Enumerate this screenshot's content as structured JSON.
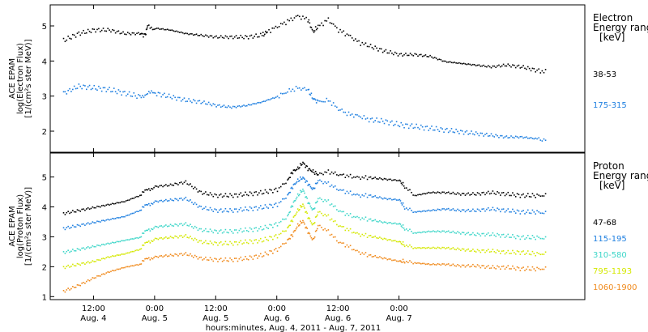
{
  "chart_data": [
    {
      "type": "scatter",
      "panel": "electron",
      "ylabel_lines": [
        "ACE EPAM",
        "log(Electron Flux)",
        "[1/(cm²s ster MeV)]"
      ],
      "ylim": [
        1.4,
        5.6
      ],
      "yticks": [
        2,
        3,
        4,
        5
      ],
      "legend_title_lines": [
        "Electron",
        "Energy range",
        "[keV]"
      ],
      "legend_placement": "right",
      "series": [
        {
          "name": "38-53",
          "color": "#000000",
          "x": [
            0,
            6,
            12,
            18,
            24,
            30,
            32,
            33,
            36,
            42,
            48,
            54,
            60,
            66,
            72,
            78,
            80,
            84,
            88,
            92,
            96,
            98,
            100,
            104,
            108,
            112,
            116,
            120,
            126,
            132,
            138,
            144,
            150,
            156,
            162,
            168,
            174,
            180,
            186,
            190
          ],
          "y": [
            4.6,
            4.8,
            4.9,
            4.9,
            4.8,
            4.8,
            4.75,
            5.0,
            4.95,
            4.9,
            4.8,
            4.75,
            4.7,
            4.7,
            4.7,
            4.75,
            4.85,
            5.0,
            5.15,
            5.3,
            5.2,
            4.85,
            5.0,
            5.2,
            4.9,
            4.75,
            4.55,
            4.45,
            4.3,
            4.2,
            4.2,
            4.15,
            4.0,
            3.95,
            3.9,
            3.85,
            3.9,
            3.85,
            3.75,
            3.7
          ]
        },
        {
          "name": "175-315",
          "color": "#1e7fe0",
          "x": [
            0,
            6,
            12,
            18,
            24,
            30,
            33,
            36,
            42,
            48,
            54,
            60,
            66,
            72,
            78,
            84,
            88,
            92,
            96,
            98,
            100,
            104,
            108,
            112,
            116,
            120,
            126,
            132,
            138,
            144,
            150,
            156,
            162,
            168,
            174,
            180,
            186,
            190
          ],
          "y": [
            3.1,
            3.3,
            3.25,
            3.2,
            3.1,
            3.0,
            3.1,
            3.1,
            3.0,
            2.9,
            2.85,
            2.75,
            2.7,
            2.75,
            2.85,
            3.0,
            3.15,
            3.25,
            3.2,
            2.95,
            2.85,
            2.9,
            2.65,
            2.5,
            2.45,
            2.35,
            2.3,
            2.2,
            2.15,
            2.1,
            2.05,
            2.0,
            1.95,
            1.9,
            1.85,
            1.85,
            1.8,
            1.75
          ]
        }
      ]
    },
    {
      "type": "scatter",
      "panel": "proton",
      "ylabel_lines": [
        "ACE EPAM",
        "log(Proton Flux)",
        "[1/(cm²s ster MeV)]"
      ],
      "ylim": [
        0.9,
        5.8
      ],
      "yticks": [
        1,
        2,
        3,
        4,
        5
      ],
      "legend_title_lines": [
        "Proton",
        "Energy range",
        "[keV]"
      ],
      "legend_placement": "right",
      "series": [
        {
          "name": "47-68",
          "color": "#000000",
          "x": [
            0,
            6,
            12,
            18,
            24,
            30,
            33,
            36,
            42,
            48,
            54,
            60,
            66,
            72,
            78,
            84,
            88,
            90,
            92,
            94,
            96,
            98,
            100,
            104,
            108,
            112,
            116,
            120,
            126,
            132,
            134,
            138,
            144,
            150,
            156,
            162,
            168,
            174,
            180,
            186,
            190
          ],
          "y": [
            3.8,
            3.9,
            4.0,
            4.1,
            4.2,
            4.4,
            4.6,
            4.7,
            4.75,
            4.85,
            4.5,
            4.4,
            4.4,
            4.45,
            4.5,
            4.6,
            4.9,
            5.2,
            5.3,
            5.5,
            5.3,
            5.2,
            5.1,
            5.2,
            5.1,
            5.05,
            5.0,
            5.0,
            4.95,
            4.9,
            4.7,
            4.4,
            4.5,
            4.5,
            4.45,
            4.45,
            4.5,
            4.45,
            4.4,
            4.4,
            4.4
          ]
        },
        {
          "name": "115-195",
          "color": "#1e7fe0",
          "x": [
            0,
            6,
            12,
            18,
            24,
            30,
            33,
            36,
            42,
            48,
            54,
            60,
            66,
            72,
            78,
            84,
            88,
            90,
            92,
            94,
            96,
            98,
            100,
            104,
            108,
            112,
            116,
            120,
            126,
            132,
            134,
            138,
            144,
            150,
            156,
            162,
            168,
            174,
            180,
            186,
            190
          ],
          "y": [
            3.3,
            3.4,
            3.5,
            3.6,
            3.7,
            3.9,
            4.1,
            4.2,
            4.25,
            4.3,
            4.0,
            3.9,
            3.9,
            3.95,
            4.0,
            4.1,
            4.4,
            4.7,
            4.9,
            5.0,
            4.8,
            4.6,
            4.9,
            4.8,
            4.6,
            4.5,
            4.4,
            4.4,
            4.3,
            4.25,
            4.0,
            3.85,
            3.9,
            3.95,
            3.9,
            3.9,
            3.95,
            3.9,
            3.85,
            3.85,
            3.8
          ]
        },
        {
          "name": "310-580",
          "color": "#3dd6c8",
          "x": [
            0,
            6,
            12,
            18,
            24,
            30,
            33,
            36,
            42,
            48,
            54,
            60,
            66,
            72,
            78,
            84,
            88,
            90,
            92,
            94,
            96,
            98,
            100,
            104,
            108,
            112,
            116,
            120,
            126,
            132,
            134,
            138,
            144,
            150,
            156,
            162,
            168,
            174,
            180,
            186,
            190
          ],
          "y": [
            2.5,
            2.6,
            2.7,
            2.8,
            2.9,
            3.0,
            3.25,
            3.35,
            3.4,
            3.45,
            3.25,
            3.2,
            3.2,
            3.25,
            3.3,
            3.45,
            3.7,
            4.1,
            4.4,
            4.6,
            4.2,
            3.9,
            4.3,
            4.2,
            3.9,
            3.75,
            3.65,
            3.6,
            3.5,
            3.45,
            3.3,
            3.15,
            3.2,
            3.2,
            3.15,
            3.1,
            3.1,
            3.05,
            3.0,
            3.0,
            2.95
          ]
        },
        {
          "name": "795-1193",
          "color": "#d4e800",
          "x": [
            0,
            6,
            12,
            18,
            24,
            30,
            33,
            36,
            42,
            48,
            54,
            60,
            66,
            72,
            78,
            84,
            88,
            90,
            92,
            94,
            96,
            98,
            100,
            104,
            108,
            112,
            116,
            120,
            126,
            132,
            134,
            138,
            144,
            150,
            156,
            162,
            168,
            174,
            180,
            186,
            190
          ],
          "y": [
            2.0,
            2.1,
            2.2,
            2.35,
            2.45,
            2.6,
            2.85,
            2.95,
            3.0,
            3.05,
            2.85,
            2.8,
            2.8,
            2.85,
            2.9,
            3.05,
            3.3,
            3.6,
            3.9,
            4.1,
            3.7,
            3.4,
            3.85,
            3.7,
            3.4,
            3.25,
            3.1,
            3.05,
            2.95,
            2.85,
            2.75,
            2.65,
            2.65,
            2.65,
            2.6,
            2.55,
            2.55,
            2.5,
            2.5,
            2.45,
            2.45
          ]
        },
        {
          "name": "1060-1900",
          "color": "#f08a1c",
          "x": [
            0,
            6,
            12,
            18,
            24,
            30,
            33,
            36,
            42,
            48,
            54,
            60,
            66,
            72,
            78,
            84,
            88,
            90,
            92,
            94,
            96,
            98,
            100,
            104,
            108,
            112,
            116,
            120,
            126,
            132,
            134,
            138,
            144,
            150,
            156,
            162,
            168,
            174,
            180,
            186,
            190
          ],
          "y": [
            1.2,
            1.4,
            1.65,
            1.85,
            2.0,
            2.1,
            2.3,
            2.35,
            2.4,
            2.45,
            2.3,
            2.25,
            2.25,
            2.3,
            2.4,
            2.6,
            2.9,
            3.1,
            3.4,
            3.55,
            3.2,
            2.9,
            3.4,
            3.2,
            2.85,
            2.7,
            2.5,
            2.4,
            2.3,
            2.2,
            2.2,
            2.15,
            2.1,
            2.1,
            2.05,
            2.05,
            2.0,
            2.0,
            1.95,
            1.95,
            1.95
          ]
        }
      ]
    }
  ],
  "x_axis": {
    "xlim": [
      -5,
      205
    ],
    "ticks": [
      {
        "x": 12,
        "time": "12:00",
        "day": "Aug. 4"
      },
      {
        "x": 36,
        "time": "0:00",
        "day": "Aug. 5"
      },
      {
        "x": 60,
        "time": "12:00",
        "day": "Aug. 5"
      },
      {
        "x": 84,
        "time": "0:00",
        "day": "Aug. 6"
      },
      {
        "x": 108,
        "time": "12:00",
        "day": "Aug. 6"
      },
      {
        "x": 132,
        "time": "0:00",
        "day": "Aug. 7"
      }
    ],
    "label": "hours:minutes, Aug.  4, 2011 - Aug.  7, 2011"
  }
}
